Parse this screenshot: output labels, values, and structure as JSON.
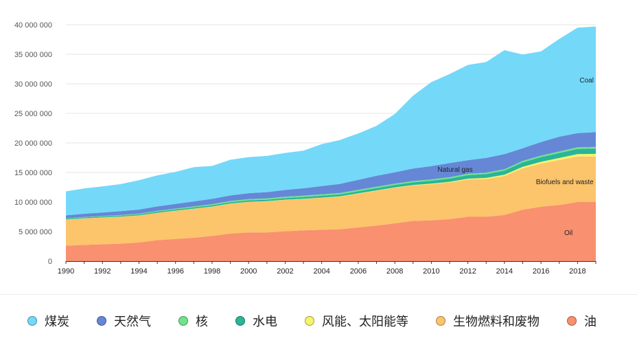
{
  "chart_data": {
    "type": "area",
    "stacked": true,
    "x": [
      1990,
      1991,
      1992,
      1993,
      1994,
      1995,
      1996,
      1997,
      1998,
      1999,
      2000,
      2001,
      2002,
      2003,
      2004,
      2005,
      2006,
      2007,
      2008,
      2009,
      2010,
      2011,
      2012,
      2013,
      2014,
      2015,
      2016,
      2017,
      2018,
      2019
    ],
    "x_ticks": [
      "1990",
      "1992",
      "1994",
      "1996",
      "1998",
      "2000",
      "2002",
      "2004",
      "2006",
      "2008",
      "2010",
      "2012",
      "2014",
      "2016",
      "2018"
    ],
    "ylim": [
      0,
      40000000
    ],
    "y_ticks": [
      "0",
      "5 000 000",
      "10 000 000",
      "15 000 000",
      "20 000 000",
      "25 000 000",
      "30 000 000",
      "35 000 000",
      "40 000 000"
    ],
    "grid": true,
    "legend_position": "bottom",
    "series": [
      {
        "key": "oil",
        "name": "Oil",
        "legend": "油",
        "color": "#f9906f",
        "values": [
          2600000,
          2750000,
          2850000,
          2950000,
          3150000,
          3550000,
          3750000,
          3950000,
          4250000,
          4650000,
          4850000,
          4850000,
          5050000,
          5200000,
          5300000,
          5400000,
          5700000,
          6000000,
          6400000,
          6800000,
          6900000,
          7100000,
          7500000,
          7500000,
          7800000,
          8700000,
          9200000,
          9500000,
          10000000,
          10000000
        ]
      },
      {
        "key": "biofuels",
        "name": "Biofuels and waste",
        "legend": "生物燃料和废物",
        "color": "#fcc46b",
        "values": [
          4400000,
          4450000,
          4500000,
          4550000,
          4550000,
          4600000,
          4750000,
          4900000,
          4950000,
          5050000,
          5150000,
          5250000,
          5300000,
          5300000,
          5400000,
          5500000,
          5700000,
          5900000,
          6000000,
          6000000,
          6100000,
          6200000,
          6300000,
          6400000,
          6600000,
          7000000,
          7300000,
          7600000,
          7700000,
          7700000
        ]
      },
      {
        "key": "wind_solar",
        "name": "",
        "legend": "风能、太阳能等",
        "color": "#f7f36a",
        "values": [
          30000,
          30000,
          30000,
          30000,
          30000,
          30000,
          30000,
          30000,
          30000,
          30000,
          40000,
          40000,
          40000,
          40000,
          50000,
          50000,
          60000,
          60000,
          70000,
          80000,
          100000,
          120000,
          150000,
          180000,
          220000,
          260000,
          300000,
          350000,
          400000,
          450000
        ]
      },
      {
        "key": "hydro",
        "name": "",
        "legend": "水电",
        "color": "#2bb597",
        "values": [
          150000,
          160000,
          170000,
          180000,
          190000,
          200000,
          210000,
          220000,
          230000,
          240000,
          250000,
          260000,
          280000,
          300000,
          320000,
          340000,
          370000,
          400000,
          420000,
          450000,
          500000,
          550000,
          600000,
          650000,
          700000,
          750000,
          800000,
          850000,
          880000,
          900000
        ]
      },
      {
        "key": "nuclear",
        "name": "",
        "legend": "核",
        "color": "#6ee38c",
        "values": [
          60000,
          70000,
          80000,
          90000,
          100000,
          120000,
          140000,
          160000,
          180000,
          200000,
          210000,
          220000,
          230000,
          230000,
          230000,
          230000,
          230000,
          230000,
          230000,
          230000,
          230000,
          230000,
          230000,
          230000,
          230000,
          240000,
          250000,
          260000,
          270000,
          290000
        ]
      },
      {
        "key": "natural_gas",
        "name": "Natural gas",
        "legend": "天然气",
        "color": "#6587d6",
        "values": [
          500000,
          550000,
          600000,
          650000,
          700000,
          750000,
          800000,
          850000,
          900000,
          950000,
          1000000,
          1050000,
          1150000,
          1250000,
          1400000,
          1550000,
          1700000,
          1850000,
          1900000,
          2100000,
          2250000,
          2400000,
          2300000,
          2500000,
          2550000,
          2150000,
          2300000,
          2500000,
          2400000,
          2500000
        ]
      },
      {
        "key": "coal",
        "name": "Coal",
        "legend": "煤炭",
        "color": "#74d8f9",
        "values": [
          4060000,
          4290000,
          4420000,
          4590000,
          4980000,
          5250000,
          5420000,
          5790000,
          5560000,
          6030000,
          6100000,
          6130000,
          6250000,
          6380000,
          7100000,
          7430000,
          7840000,
          8460000,
          9880000,
          12340000,
          14210000,
          15060000,
          16120000,
          16240000,
          17600000,
          15850000,
          15350000,
          16540000,
          17850000,
          17860000
        ]
      }
    ]
  }
}
